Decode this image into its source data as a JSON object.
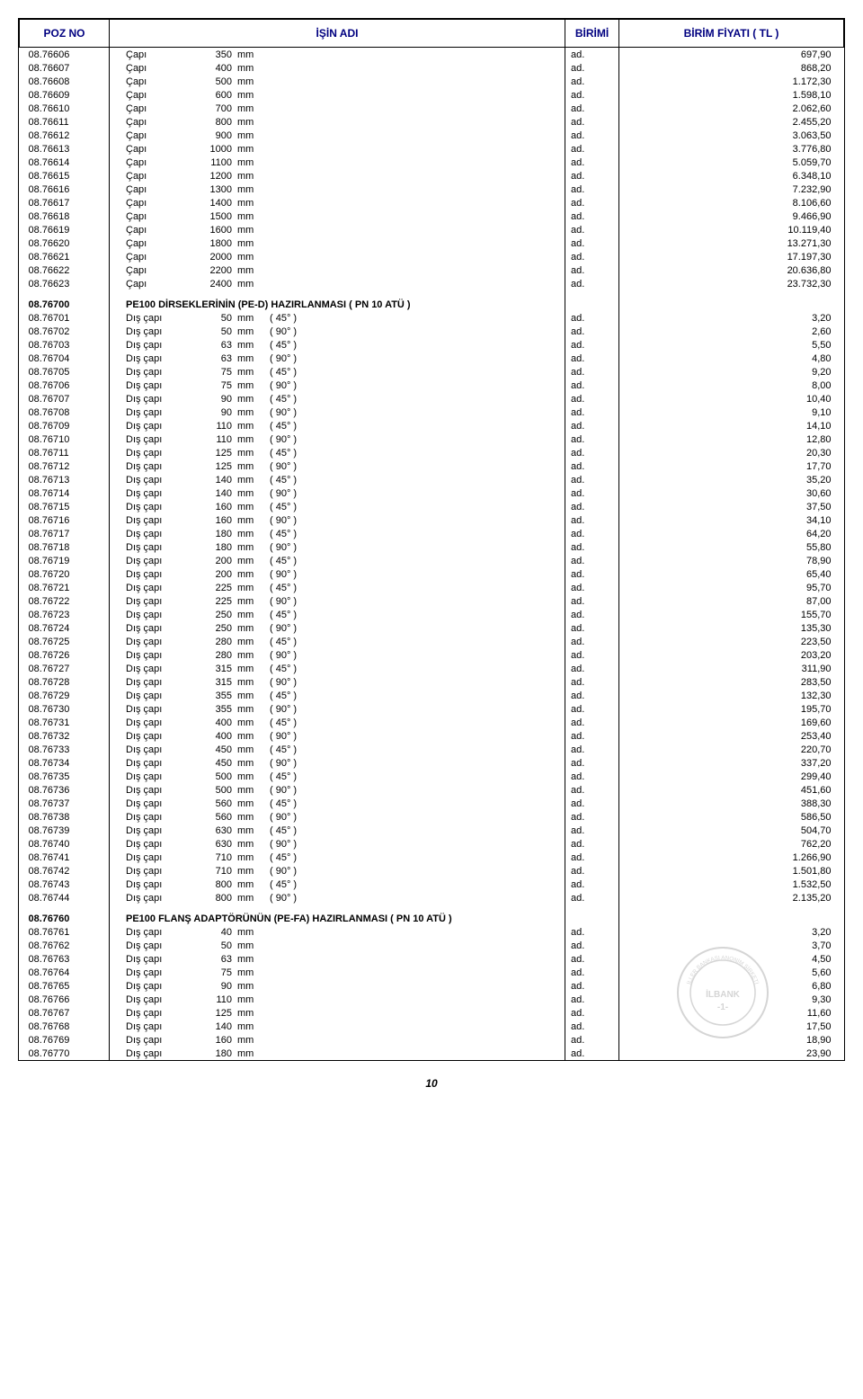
{
  "headers": {
    "poz": "POZ NO",
    "isin": "İŞİN  ADI",
    "birim": "BİRİMİ",
    "fiyat": "BİRİM FİYATI   ( TL )"
  },
  "page_number": "10",
  "sections": [
    {
      "rows": [
        {
          "poz": "08.76606",
          "l": "Çapı",
          "v": "350",
          "u": "mm",
          "b": "ad.",
          "f": "697,90"
        },
        {
          "poz": "08.76607",
          "l": "Çapı",
          "v": "400",
          "u": "mm",
          "b": "ad.",
          "f": "868,20"
        },
        {
          "poz": "08.76608",
          "l": "Çapı",
          "v": "500",
          "u": "mm",
          "b": "ad.",
          "f": "1.172,30"
        },
        {
          "poz": "08.76609",
          "l": "Çapı",
          "v": "600",
          "u": "mm",
          "b": "ad.",
          "f": "1.598,10"
        },
        {
          "poz": "08.76610",
          "l": "Çapı",
          "v": "700",
          "u": "mm",
          "b": "ad.",
          "f": "2.062,60"
        },
        {
          "poz": "08.76611",
          "l": "Çapı",
          "v": "800",
          "u": "mm",
          "b": "ad.",
          "f": "2.455,20"
        },
        {
          "poz": "08.76612",
          "l": "Çapı",
          "v": "900",
          "u": "mm",
          "b": "ad.",
          "f": "3.063,50"
        },
        {
          "poz": "08.76613",
          "l": "Çapı",
          "v": "1000",
          "u": "mm",
          "b": "ad.",
          "f": "3.776,80"
        },
        {
          "poz": "08.76614",
          "l": "Çapı",
          "v": "1100",
          "u": "mm",
          "b": "ad.",
          "f": "5.059,70"
        },
        {
          "poz": "08.76615",
          "l": "Çapı",
          "v": "1200",
          "u": "mm",
          "b": "ad.",
          "f": "6.348,10"
        },
        {
          "poz": "08.76616",
          "l": "Çapı",
          "v": "1300",
          "u": "mm",
          "b": "ad.",
          "f": "7.232,90"
        },
        {
          "poz": "08.76617",
          "l": "Çapı",
          "v": "1400",
          "u": "mm",
          "b": "ad.",
          "f": "8.106,60"
        },
        {
          "poz": "08.76618",
          "l": "Çapı",
          "v": "1500",
          "u": "mm",
          "b": "ad.",
          "f": "9.466,90"
        },
        {
          "poz": "08.76619",
          "l": "Çapı",
          "v": "1600",
          "u": "mm",
          "b": "ad.",
          "f": "10.119,40"
        },
        {
          "poz": "08.76620",
          "l": "Çapı",
          "v": "1800",
          "u": "mm",
          "b": "ad.",
          "f": "13.271,30"
        },
        {
          "poz": "08.76621",
          "l": "Çapı",
          "v": "2000",
          "u": "mm",
          "b": "ad.",
          "f": "17.197,30"
        },
        {
          "poz": "08.76622",
          "l": "Çapı",
          "v": "2200",
          "u": "mm",
          "b": "ad.",
          "f": "20.636,80"
        },
        {
          "poz": "08.76623",
          "l": "Çapı",
          "v": "2400",
          "u": "mm",
          "b": "ad.",
          "f": "23.732,30"
        }
      ]
    },
    {
      "header": {
        "poz": "08.76700",
        "title": "PE100  DİRSEKLERİNİN (PE-D) HAZIRLANMASI      ( PN 10 ATÜ )"
      },
      "rows": [
        {
          "poz": "08.76701",
          "l": "Dış  çapı",
          "v": "50",
          "u": "mm",
          "a": "( 45° )",
          "b": "ad.",
          "f": "3,20"
        },
        {
          "poz": "08.76702",
          "l": "Dış  çapı",
          "v": "50",
          "u": "mm",
          "a": "( 90° )",
          "b": "ad.",
          "f": "2,60"
        },
        {
          "poz": "08.76703",
          "l": "Dış  çapı",
          "v": "63",
          "u": "mm",
          "a": "( 45° )",
          "b": "ad.",
          "f": "5,50"
        },
        {
          "poz": "08.76704",
          "l": "Dış  çapı",
          "v": "63",
          "u": "mm",
          "a": "( 90° )",
          "b": "ad.",
          "f": "4,80"
        },
        {
          "poz": "08.76705",
          "l": "Dış  çapı",
          "v": "75",
          "u": "mm",
          "a": "( 45° )",
          "b": "ad.",
          "f": "9,20"
        },
        {
          "poz": "08.76706",
          "l": "Dış  çapı",
          "v": "75",
          "u": "mm",
          "a": "( 90° )",
          "b": "ad.",
          "f": "8,00"
        },
        {
          "poz": "08.76707",
          "l": "Dış  çapı",
          "v": "90",
          "u": "mm",
          "a": "( 45° )",
          "b": "ad.",
          "f": "10,40"
        },
        {
          "poz": "08.76708",
          "l": "Dış  çapı",
          "v": "90",
          "u": "mm",
          "a": "( 90° )",
          "b": "ad.",
          "f": "9,10"
        },
        {
          "poz": "08.76709",
          "l": "Dış  çapı",
          "v": "110",
          "u": "mm",
          "a": "( 45° )",
          "b": "ad.",
          "f": "14,10"
        },
        {
          "poz": "08.76710",
          "l": "Dış  çapı",
          "v": "110",
          "u": "mm",
          "a": "( 90° )",
          "b": "ad.",
          "f": "12,80"
        },
        {
          "poz": "08.76711",
          "l": "Dış  çapı",
          "v": "125",
          "u": "mm",
          "a": "( 45° )",
          "b": "ad.",
          "f": "20,30"
        },
        {
          "poz": "08.76712",
          "l": "Dış  çapı",
          "v": "125",
          "u": "mm",
          "a": "( 90° )",
          "b": "ad.",
          "f": "17,70"
        },
        {
          "poz": "08.76713",
          "l": "Dış  çapı",
          "v": "140",
          "u": "mm",
          "a": "( 45° )",
          "b": "ad.",
          "f": "35,20"
        },
        {
          "poz": "08.76714",
          "l": "Dış  çapı",
          "v": "140",
          "u": "mm",
          "a": "( 90° )",
          "b": "ad.",
          "f": "30,60"
        },
        {
          "poz": "08.76715",
          "l": "Dış  çapı",
          "v": "160",
          "u": "mm",
          "a": "( 45° )",
          "b": "ad.",
          "f": "37,50"
        },
        {
          "poz": "08.76716",
          "l": "Dış  çapı",
          "v": "160",
          "u": "mm",
          "a": "( 90° )",
          "b": "ad.",
          "f": "34,10"
        },
        {
          "poz": "08.76717",
          "l": "Dış  çapı",
          "v": "180",
          "u": "mm",
          "a": "( 45° )",
          "b": "ad.",
          "f": "64,20"
        },
        {
          "poz": "08.76718",
          "l": "Dış  çapı",
          "v": "180",
          "u": "mm",
          "a": "( 90° )",
          "b": "ad.",
          "f": "55,80"
        },
        {
          "poz": "08.76719",
          "l": "Dış  çapı",
          "v": "200",
          "u": "mm",
          "a": "( 45° )",
          "b": "ad.",
          "f": "78,90"
        },
        {
          "poz": "08.76720",
          "l": "Dış  çapı",
          "v": "200",
          "u": "mm",
          "a": "( 90° )",
          "b": "ad.",
          "f": "65,40"
        },
        {
          "poz": "08.76721",
          "l": "Dış  çapı",
          "v": "225",
          "u": "mm",
          "a": "( 45° )",
          "b": "ad.",
          "f": "95,70"
        },
        {
          "poz": "08.76722",
          "l": "Dış  çapı",
          "v": "225",
          "u": "mm",
          "a": "( 90° )",
          "b": "ad.",
          "f": "87,00"
        },
        {
          "poz": "08.76723",
          "l": "Dış  çapı",
          "v": "250",
          "u": "mm",
          "a": "( 45° )",
          "b": "ad.",
          "f": "155,70"
        },
        {
          "poz": "08.76724",
          "l": "Dış  çapı",
          "v": "250",
          "u": "mm",
          "a": "( 90° )",
          "b": "ad.",
          "f": "135,30"
        },
        {
          "poz": "08.76725",
          "l": "Dış  çapı",
          "v": "280",
          "u": "mm",
          "a": "( 45° )",
          "b": "ad.",
          "f": "223,50"
        },
        {
          "poz": "08.76726",
          "l": "Dış  çapı",
          "v": "280",
          "u": "mm",
          "a": "( 90° )",
          "b": "ad.",
          "f": "203,20"
        },
        {
          "poz": "08.76727",
          "l": "Dış  çapı",
          "v": "315",
          "u": "mm",
          "a": "( 45° )",
          "b": "ad.",
          "f": "311,90"
        },
        {
          "poz": "08.76728",
          "l": "Dış  çapı",
          "v": "315",
          "u": "mm",
          "a": "( 90° )",
          "b": "ad.",
          "f": "283,50"
        },
        {
          "poz": "08.76729",
          "l": "Dış  çapı",
          "v": "355",
          "u": "mm",
          "a": "( 45° )",
          "b": "ad.",
          "f": "132,30"
        },
        {
          "poz": "08.76730",
          "l": "Dış  çapı",
          "v": "355",
          "u": "mm",
          "a": "( 90° )",
          "b": "ad.",
          "f": "195,70"
        },
        {
          "poz": "08.76731",
          "l": "Dış  çapı",
          "v": "400",
          "u": "mm",
          "a": "( 45° )",
          "b": "ad.",
          "f": "169,60"
        },
        {
          "poz": "08.76732",
          "l": "Dış  çapı",
          "v": "400",
          "u": "mm",
          "a": "( 90° )",
          "b": "ad.",
          "f": "253,40"
        },
        {
          "poz": "08.76733",
          "l": "Dış  çapı",
          "v": "450",
          "u": "mm",
          "a": "( 45° )",
          "b": "ad.",
          "f": "220,70"
        },
        {
          "poz": "08.76734",
          "l": "Dış  çapı",
          "v": "450",
          "u": "mm",
          "a": "( 90° )",
          "b": "ad.",
          "f": "337,20"
        },
        {
          "poz": "08.76735",
          "l": "Dış  çapı",
          "v": "500",
          "u": "mm",
          "a": "( 45° )",
          "b": "ad.",
          "f": "299,40"
        },
        {
          "poz": "08.76736",
          "l": "Dış  çapı",
          "v": "500",
          "u": "mm",
          "a": "( 90° )",
          "b": "ad.",
          "f": "451,60"
        },
        {
          "poz": "08.76737",
          "l": "Dış  çapı",
          "v": "560",
          "u": "mm",
          "a": "( 45° )",
          "b": "ad.",
          "f": "388,30"
        },
        {
          "poz": "08.76738",
          "l": "Dış  çapı",
          "v": "560",
          "u": "mm",
          "a": "( 90° )",
          "b": "ad.",
          "f": "586,50"
        },
        {
          "poz": "08.76739",
          "l": "Dış  çapı",
          "v": "630",
          "u": "mm",
          "a": "( 45° )",
          "b": "ad.",
          "f": "504,70"
        },
        {
          "poz": "08.76740",
          "l": "Dış  çapı",
          "v": "630",
          "u": "mm",
          "a": "( 90° )",
          "b": "ad.",
          "f": "762,20"
        },
        {
          "poz": "08.76741",
          "l": "Dış  çapı",
          "v": "710",
          "u": "mm",
          "a": "( 45° )",
          "b": "ad.",
          "f": "1.266,90"
        },
        {
          "poz": "08.76742",
          "l": "Dış  çapı",
          "v": "710",
          "u": "mm",
          "a": "( 90° )",
          "b": "ad.",
          "f": "1.501,80"
        },
        {
          "poz": "08.76743",
          "l": "Dış  çapı",
          "v": "800",
          "u": "mm",
          "a": "( 45° )",
          "b": "ad.",
          "f": "1.532,50"
        },
        {
          "poz": "08.76744",
          "l": "Dış  çapı",
          "v": "800",
          "u": "mm",
          "a": "( 90° )",
          "b": "ad.",
          "f": "2.135,20"
        }
      ]
    },
    {
      "header": {
        "poz": "08.76760",
        "title": "PE100  FLANŞ ADAPTÖRÜNÜN (PE-FA) HAZIRLANMASI      ( PN 10 ATÜ )"
      },
      "stamp": true,
      "rows": [
        {
          "poz": "08.76761",
          "l": "Dış  çapı",
          "v": "40",
          "u": "mm",
          "b": "ad.",
          "f": "3,20"
        },
        {
          "poz": "08.76762",
          "l": "Dış  çapı",
          "v": "50",
          "u": "mm",
          "b": "ad.",
          "f": "3,70"
        },
        {
          "poz": "08.76763",
          "l": "Dış  çapı",
          "v": "63",
          "u": "mm",
          "b": "ad.",
          "f": "4,50"
        },
        {
          "poz": "08.76764",
          "l": "Dış  çapı",
          "v": "75",
          "u": "mm",
          "b": "ad.",
          "f": "5,60"
        },
        {
          "poz": "08.76765",
          "l": "Dış  çapı",
          "v": "90",
          "u": "mm",
          "b": "ad.",
          "f": "6,80"
        },
        {
          "poz": "08.76766",
          "l": "Dış  çapı",
          "v": "110",
          "u": "mm",
          "b": "ad.",
          "f": "9,30"
        },
        {
          "poz": "08.76767",
          "l": "Dış  çapı",
          "v": "125",
          "u": "mm",
          "b": "ad.",
          "f": "11,60"
        },
        {
          "poz": "08.76768",
          "l": "Dış  çapı",
          "v": "140",
          "u": "mm",
          "b": "ad.",
          "f": "17,50"
        },
        {
          "poz": "08.76769",
          "l": "Dış  çapı",
          "v": "160",
          "u": "mm",
          "b": "ad.",
          "f": "18,90"
        },
        {
          "poz": "08.76770",
          "l": "Dış  çapı",
          "v": "180",
          "u": "mm",
          "b": "ad.",
          "f": "23,90"
        }
      ]
    }
  ],
  "stamp_text": {
    "top": "İLLER BANKASI ANONİM ŞİRKETİ",
    "mid": "İLBANK",
    "num": "-1-"
  }
}
